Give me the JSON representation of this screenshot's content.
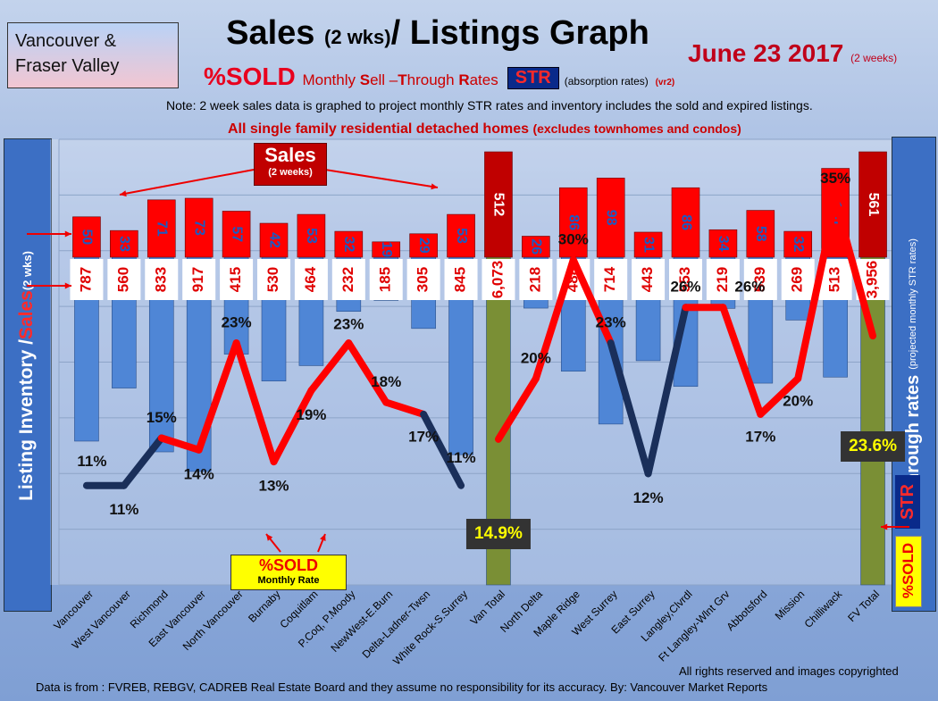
{
  "region_box": [
    "Vancouver &",
    "Fraser Valley"
  ],
  "title": {
    "main_a": "Sales ",
    "main_small": "(2 wks)",
    "main_b": "/ Listings Graph",
    "date": "June 23 2017 ",
    "date_small": "(2 weeks)"
  },
  "subtitle": {
    "sold": "%SOLD",
    "monthly": "Monthly ",
    "s": "S",
    "ell": "ell –",
    "t": "T",
    "hrough": "hrough ",
    "r": "R",
    "ates": "ates",
    "str": "STR",
    "absorption": "(absorption rates)",
    "version": "(vr2)"
  },
  "note": "Note: 2 week sales data is graphed to project monthly STR rates and inventory includes the sold and expired listings.",
  "homes_note": {
    "main": "All single family residential detached homes ",
    "small": "(excludes townhomes and condos)"
  },
  "left_axis": {
    "a": "Listing Inventory / ",
    "sales": "Sales",
    "small": " (2  wks)"
  },
  "right_axis": {
    "a": "Sell-through rates",
    "small": "(projected monthly STR rates)"
  },
  "right_str": "STR",
  "right_sold": "%SOLD",
  "sales_callout": {
    "big": "Sales",
    "small": "(2 weeks)"
  },
  "sold_callout": {
    "big": "%SOLD",
    "small": "Monthly Rate"
  },
  "footer": {
    "rights": "All rights reserved and  images copyrighted",
    "source": "Data is from : FVREB, REBGV, CADREB Real Estate Board and they assume no responsibility for its accuracy. By: Vancouver Market Reports"
  },
  "colors": {
    "sales": "#ff0000",
    "sales_total": "#c00000",
    "listing": "#4f86d6",
    "listing_total": "#7a8f35",
    "str_line": "#ff0000",
    "str_line_low": "#1a2f5a"
  },
  "chart_data": {
    "type": "bar",
    "categories": [
      "Vancouver",
      "West Vancouver",
      "Richmond",
      "East Vancouver",
      "North Vancouver",
      "Burnaby",
      "Coquitlam",
      "P.Coq, P.Moody",
      "NewWest-E.Burn",
      "Delta-Ladner-Twsn",
      "White Rock-S.Surrey",
      "Van Total",
      "North Delta",
      "Maple Ridge",
      "West Surrey",
      "East Surrey",
      "Langley,Clvrdl",
      "Ft Langley-Wlnt Grv",
      "Abbotsford",
      "Mission",
      "Chilliwack",
      "FV Total"
    ],
    "series": [
      {
        "values": [
          50,
          33,
          71,
          73,
          57,
          42,
          53,
          32,
          19,
          29,
          53,
          512,
          26,
          86,
          98,
          31,
          86,
          34,
          58,
          32,
          110,
          561
        ]
      },
      {
        "values": [
          787,
          560,
          833,
          917,
          415,
          530,
          464,
          232,
          185,
          305,
          845,
          6073,
          218,
          488,
          714,
          443,
          553,
          219,
          539,
          269,
          513,
          3956
        ]
      },
      {
        "values": [
          11,
          11,
          15,
          14,
          23,
          13,
          19,
          23,
          18,
          17,
          11,
          14.9,
          20,
          30,
          23,
          12,
          26,
          26,
          17,
          20,
          35,
          23.6
        ]
      }
    ],
    "sales_labels": [
      "50",
      "33",
      "71",
      "73",
      "57",
      "42",
      "53",
      "32",
      "19",
      "29",
      "53",
      "512",
      "26",
      "86",
      "98",
      "31",
      "86",
      "34",
      "58",
      "32",
      "110",
      "561"
    ],
    "listing_labels": [
      "787",
      "560",
      "833",
      "917",
      "415",
      "530",
      "464",
      "232",
      "185",
      "305",
      "845",
      "6,073",
      "218",
      "488",
      "714",
      "443",
      "553",
      "219",
      "539",
      "269",
      "513",
      "3,956"
    ],
    "str_labels": [
      "11%",
      "11%",
      "15%",
      "14%",
      "23%",
      "13%",
      "19%",
      "23%",
      "18%",
      "17%",
      "11%",
      "14.9%",
      "20%",
      "30%",
      "23%",
      "12%",
      "26%",
      "26%",
      "17%",
      "20%",
      "35%",
      "23.6%"
    ],
    "grid": true
  }
}
